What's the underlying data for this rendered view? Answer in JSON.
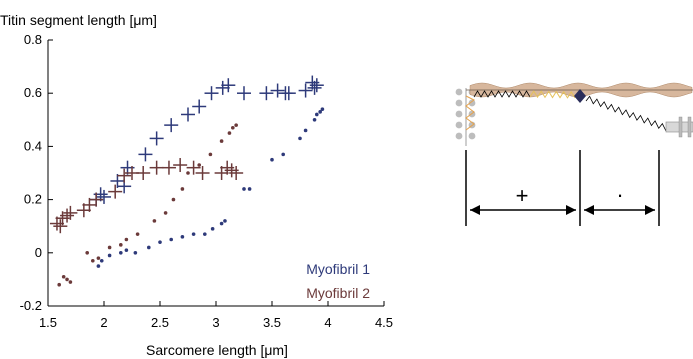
{
  "chart_data": {
    "type": "scatter",
    "ylabel": "Titin segment length [μm]",
    "xlabel": "Sarcomere length [μm]",
    "xlim": [
      1.5,
      4.5
    ],
    "ylim": [
      -0.2,
      0.8
    ],
    "xticks": [
      "1.5",
      "2",
      "2.5",
      "3",
      "3.5",
      "4",
      "4.5"
    ],
    "yticks": [
      "-0.2",
      "0",
      "0.2",
      "0.4",
      "0.6",
      "0.8"
    ],
    "grid": false,
    "legend_position": "bottom-right",
    "colors": {
      "myofibril1": "#2e3a7a",
      "myofibril2": "#6b3a3a"
    },
    "series": [
      {
        "name": "Myofibril 1",
        "key": "m1",
        "marker": "plus",
        "x": [
          1.93,
          1.97,
          2.0,
          2.12,
          2.18,
          2.21,
          2.37,
          2.47,
          2.6,
          2.75,
          2.85,
          2.96,
          3.06,
          3.11,
          3.25,
          3.45,
          3.55,
          3.62,
          3.65,
          3.8,
          3.86,
          3.88,
          3.9
        ],
        "y": [
          0.2,
          0.22,
          0.21,
          0.27,
          0.25,
          0.32,
          0.37,
          0.43,
          0.48,
          0.52,
          0.55,
          0.6,
          0.62,
          0.63,
          0.6,
          0.6,
          0.61,
          0.6,
          0.6,
          0.61,
          0.64,
          0.62,
          0.63
        ]
      },
      {
        "name": "Myofibril 1",
        "key": "m1",
        "marker": "dot",
        "x": [
          1.95,
          1.98,
          2.05,
          2.15,
          2.2,
          2.28,
          2.4,
          2.5,
          2.6,
          2.7,
          2.8,
          2.9,
          2.97,
          3.05,
          3.08,
          3.25,
          3.3,
          3.5,
          3.6,
          3.75,
          3.8,
          3.88,
          3.9,
          3.93,
          3.95
        ],
        "y": [
          -0.05,
          -0.03,
          -0.01,
          0.0,
          0.01,
          0.0,
          0.02,
          0.04,
          0.05,
          0.06,
          0.07,
          0.07,
          0.09,
          0.11,
          0.12,
          0.24,
          0.24,
          0.35,
          0.37,
          0.43,
          0.46,
          0.5,
          0.52,
          0.53,
          0.54
        ]
      },
      {
        "name": "Myofibril 2",
        "key": "m2",
        "marker": "plus",
        "x": [
          1.58,
          1.61,
          1.63,
          1.67,
          1.7,
          1.82,
          1.87,
          1.93,
          2.1,
          2.18,
          2.25,
          2.35,
          2.47,
          2.58,
          2.68,
          2.8,
          2.88,
          3.05,
          3.1,
          3.14,
          3.18
        ],
        "y": [
          0.11,
          0.1,
          0.13,
          0.14,
          0.15,
          0.16,
          0.18,
          0.2,
          0.23,
          0.29,
          0.3,
          0.3,
          0.32,
          0.32,
          0.33,
          0.32,
          0.3,
          0.3,
          0.32,
          0.31,
          0.3
        ]
      },
      {
        "name": "Myofibril 2",
        "key": "m2",
        "marker": "dot",
        "x": [
          1.6,
          1.64,
          1.67,
          1.7,
          1.85,
          1.9,
          1.95,
          2.05,
          2.15,
          2.2,
          2.3,
          2.45,
          2.55,
          2.62,
          2.7,
          2.75,
          2.85,
          2.95,
          3.05,
          3.12,
          3.15,
          3.18
        ],
        "y": [
          -0.12,
          -0.09,
          -0.1,
          -0.11,
          0.0,
          -0.03,
          -0.02,
          0.02,
          0.03,
          0.05,
          0.07,
          0.12,
          0.15,
          0.2,
          0.24,
          0.3,
          0.33,
          0.37,
          0.42,
          0.45,
          0.47,
          0.48
        ]
      }
    ],
    "legend": [
      {
        "label": "Myofibril 1",
        "key": "m1"
      },
      {
        "label": "Myofibril 2",
        "key": "m2"
      }
    ]
  },
  "schematic": {
    "colors": {
      "thick_filament": "#d7b79d",
      "titin": "#000000",
      "spring_yellow": "#e6c15a",
      "marker": "#2a2d5a",
      "zdisc": "#b0b0b0"
    },
    "left_segment_symbol": "+",
    "right_segment_symbol": "·"
  }
}
